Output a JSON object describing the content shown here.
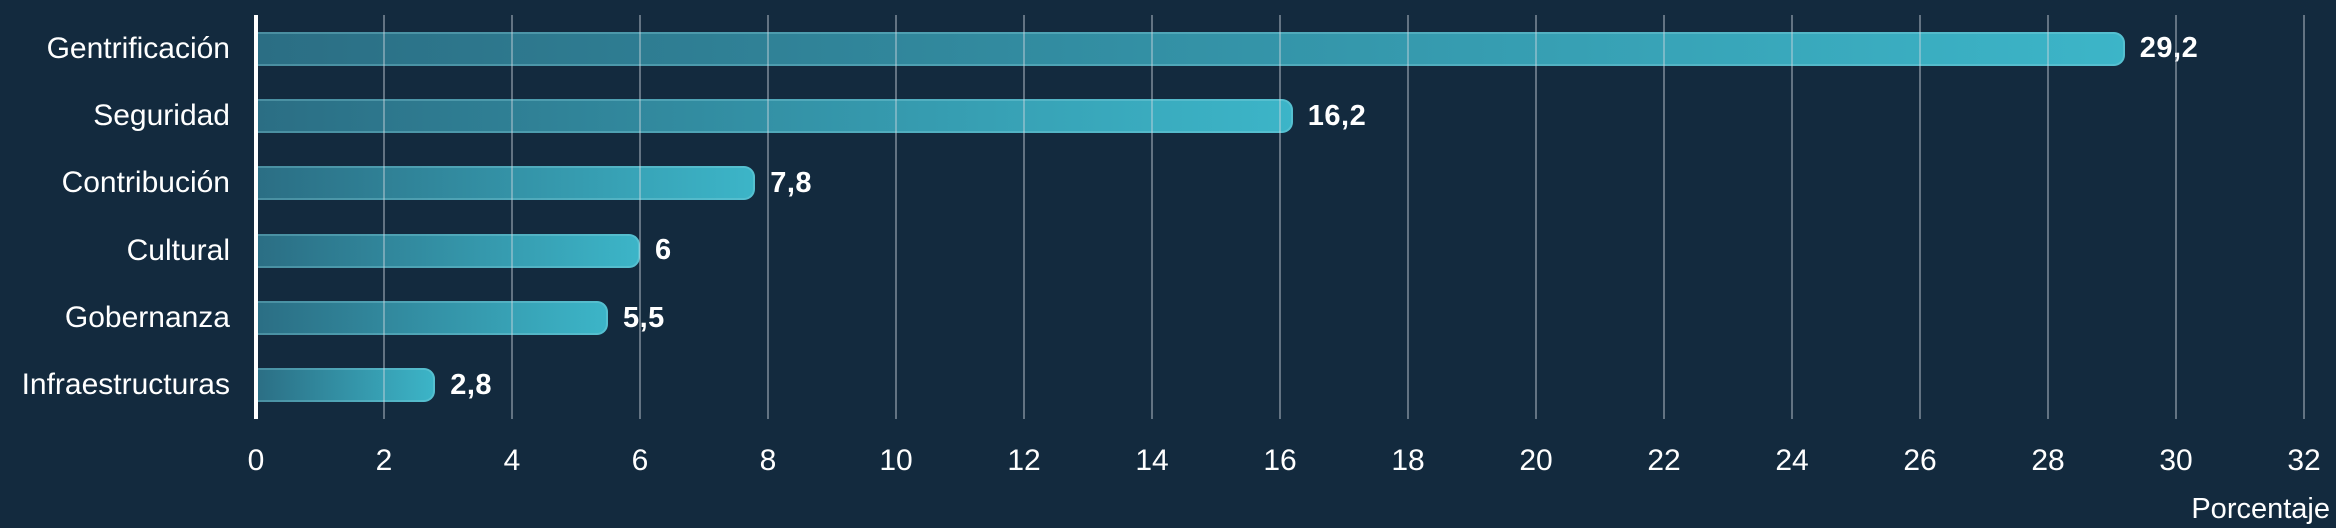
{
  "chart_data": {
    "type": "bar",
    "orientation": "horizontal",
    "title": "",
    "xlabel": "Porcentaje",
    "ylabel": "",
    "categories": [
      "Gentrificación",
      "Seguridad",
      "Contribución",
      "Cultural",
      "Gobernanza",
      "Infraestructuras"
    ],
    "values": [
      29.2,
      16.2,
      7.8,
      6,
      5.5,
      2.8
    ],
    "value_labels": [
      "29,2",
      "16,2",
      "7,8",
      "6",
      "5,5",
      "2,8"
    ],
    "xlim": [
      0,
      32
    ],
    "xticks": [
      0,
      2,
      4,
      6,
      8,
      10,
      12,
      14,
      16,
      18,
      20,
      22,
      24,
      26,
      28,
      30,
      32
    ],
    "xtick_labels": [
      "0",
      "2",
      "4",
      "6",
      "8",
      "10",
      "12",
      "14",
      "16",
      "18",
      "20",
      "22",
      "24",
      "26",
      "28",
      "30",
      "32"
    ],
    "grid": "vertical",
    "legend": "none",
    "colors": {
      "background": "#132a3e",
      "bar_gradient_start": "#2b6e84",
      "bar_gradient_end": "#3cb5c8",
      "bar_edge": "rgba(146,217,230,0.30)",
      "gridline": "rgba(209,217,224,0.42)",
      "axis_line": "#ffffff",
      "text": "#ffffff"
    }
  }
}
